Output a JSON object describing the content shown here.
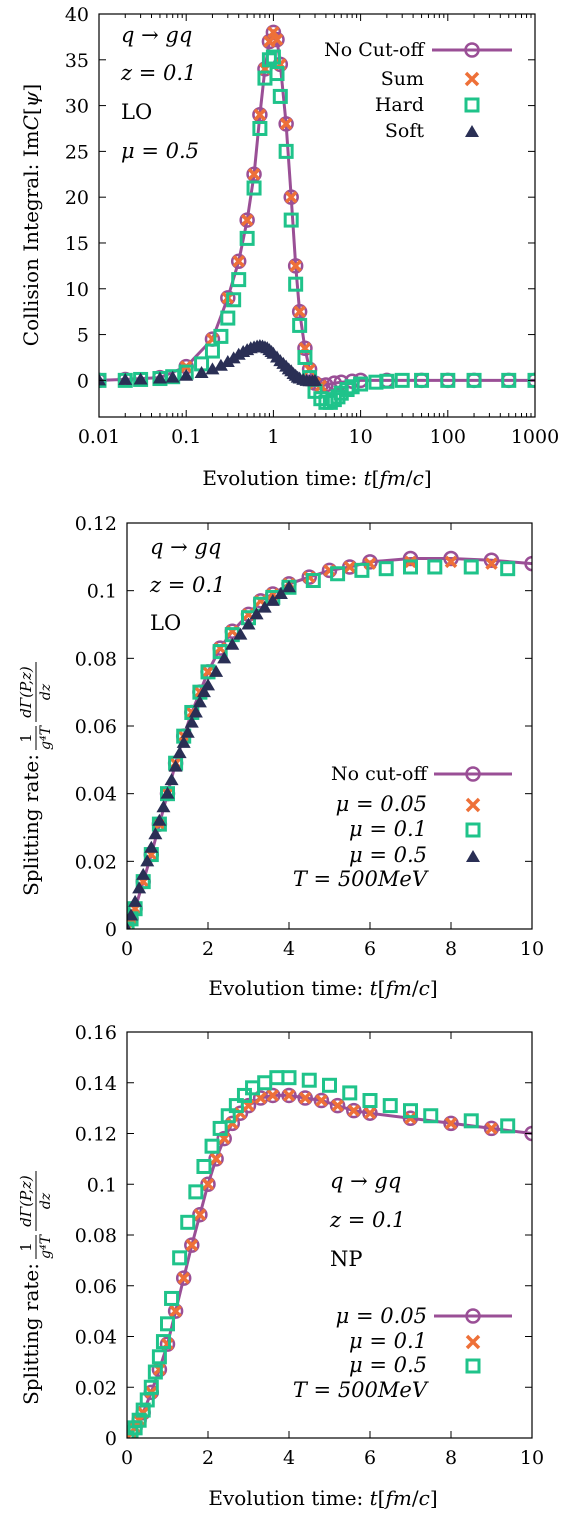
{
  "colors": {
    "no_cutoff": "#9a4f96",
    "sum": "#ee7038",
    "hard": "#1fc38a",
    "soft": "#2a2f55",
    "axis": "#000000"
  },
  "chart_data": [
    {
      "type": "line",
      "xscale": "log",
      "xlabel": "Evolution time: t[fm/c]",
      "ylabel": "Collision Integral: ImC[ψ]",
      "xlim": [
        0.01,
        1000
      ],
      "ylim": [
        -4,
        40
      ],
      "xticks": [
        0.01,
        0.1,
        1,
        10,
        100,
        1000
      ],
      "xtick_labels": [
        "0.01",
        "0.1",
        "1",
        "10",
        "100",
        "1000"
      ],
      "yticks": [
        0,
        5,
        10,
        15,
        20,
        25,
        30,
        35,
        40
      ],
      "ytick_labels": [
        "0",
        "5",
        "10",
        "15",
        "20",
        "25",
        "30",
        "35",
        "40"
      ],
      "annotations": [
        "q → gq",
        "z = 0.1",
        "LO",
        "μ = 0.5"
      ],
      "legend": [
        "No Cut-off",
        "Sum",
        "Hard",
        "Soft"
      ],
      "legend_position": "top-right",
      "series": [
        {
          "name": "No Cut-off",
          "marker": "circle",
          "x": [
            0.01,
            0.02,
            0.05,
            0.1,
            0.2,
            0.3,
            0.4,
            0.5,
            0.6,
            0.7,
            0.8,
            0.9,
            1.0,
            1.1,
            1.2,
            1.4,
            1.6,
            1.8,
            2.0,
            2.3,
            2.6,
            3.0,
            3.5,
            4.0,
            5.0,
            6.0,
            8.0,
            10,
            20,
            50,
            100,
            200,
            500,
            1000
          ],
          "y": [
            0.0,
            0.1,
            0.3,
            1.5,
            4.5,
            9.0,
            13.0,
            17.5,
            22.5,
            29.0,
            34.0,
            37.0,
            38.0,
            37.2,
            34.5,
            28.0,
            20.0,
            12.5,
            7.5,
            3.5,
            1.2,
            -0.3,
            -0.6,
            -0.5,
            -0.3,
            -0.2,
            -0.1,
            0.0,
            0.0,
            0.0,
            0.0,
            0.0,
            0.0,
            0.0
          ]
        },
        {
          "name": "Sum",
          "marker": "x",
          "x": [
            0.1,
            0.2,
            0.3,
            0.4,
            0.5,
            0.6,
            0.7,
            0.8,
            0.9,
            1.0,
            1.1,
            1.2,
            1.4,
            1.6,
            1.8,
            2.0,
            2.3,
            2.6,
            3.0,
            3.5
          ],
          "y": [
            1.5,
            4.5,
            9.0,
            13.0,
            17.5,
            22.5,
            29.0,
            34.0,
            37.0,
            38.0,
            37.2,
            34.5,
            28.0,
            20.0,
            12.5,
            7.5,
            3.5,
            1.2,
            -0.3,
            -0.6
          ]
        },
        {
          "name": "Hard",
          "marker": "square",
          "x": [
            0.01,
            0.02,
            0.03,
            0.05,
            0.07,
            0.1,
            0.15,
            0.2,
            0.25,
            0.3,
            0.35,
            0.4,
            0.5,
            0.6,
            0.7,
            0.8,
            0.9,
            1.0,
            1.1,
            1.2,
            1.4,
            1.6,
            1.8,
            2.0,
            2.3,
            2.6,
            3.0,
            3.5,
            4.0,
            4.5,
            5.0,
            5.5,
            6.0,
            7.0,
            8.0,
            10,
            15,
            20,
            30,
            50,
            100,
            200,
            500,
            1000
          ],
          "y": [
            0.0,
            0.0,
            0.1,
            0.2,
            0.4,
            0.9,
            1.8,
            3.2,
            4.8,
            6.8,
            8.8,
            11.0,
            15.5,
            21.0,
            27.5,
            33.0,
            35.0,
            35.3,
            33.5,
            31.0,
            25.0,
            17.5,
            10.5,
            6.0,
            2.5,
            0.3,
            -1.2,
            -2.0,
            -2.4,
            -2.4,
            -2.1,
            -1.8,
            -1.4,
            -1.0,
            -0.7,
            -0.4,
            -0.2,
            -0.1,
            0.0,
            0.0,
            0.0,
            0.0,
            0.0,
            0.0
          ]
        },
        {
          "name": "Soft",
          "marker": "triangle",
          "x": [
            0.01,
            0.02,
            0.03,
            0.05,
            0.07,
            0.1,
            0.15,
            0.2,
            0.25,
            0.3,
            0.35,
            0.4,
            0.45,
            0.5,
            0.55,
            0.6,
            0.65,
            0.7,
            0.75,
            0.8,
            0.85,
            0.9,
            0.95,
            1.0,
            1.1,
            1.2,
            1.3,
            1.4,
            1.5,
            1.6,
            1.7,
            1.8,
            1.9,
            2.0,
            2.2,
            2.4,
            2.6,
            2.8,
            3.0
          ],
          "y": [
            0.0,
            0.05,
            0.1,
            0.2,
            0.3,
            0.5,
            0.8,
            1.2,
            1.6,
            2.0,
            2.4,
            2.8,
            3.1,
            3.3,
            3.5,
            3.6,
            3.7,
            3.75,
            3.7,
            3.6,
            3.5,
            3.3,
            3.1,
            2.9,
            2.5,
            2.1,
            1.8,
            1.5,
            1.2,
            1.0,
            0.7,
            0.5,
            0.3,
            0.2,
            0.05,
            -0.05,
            -0.1,
            -0.1,
            -0.05
          ]
        }
      ]
    },
    {
      "type": "line",
      "xscale": "linear",
      "xlabel": "Evolution time: t[fm/c]",
      "ylabel": "Splitting rate: (1/(g⁴T)) dΓ(P,z)/dz",
      "xlim": [
        0,
        10
      ],
      "ylim": [
        0,
        0.12
      ],
      "xticks": [
        0,
        2,
        4,
        6,
        8,
        10
      ],
      "xtick_labels": [
        "0",
        "2",
        "4",
        "6",
        "8",
        "10"
      ],
      "yticks": [
        0,
        0.02,
        0.04,
        0.06,
        0.08,
        0.1,
        0.12
      ],
      "ytick_labels": [
        "0",
        "0.02",
        "0.04",
        "0.06",
        "0.08",
        "0.1",
        "0.12"
      ],
      "annotations": [
        "q → gq",
        "z = 0.1",
        "LO"
      ],
      "legend": [
        "No cut-off",
        "μ = 0.05",
        "μ = 0.1",
        "μ = 0.5",
        "T = 500MeV"
      ],
      "legend_position": "bottom-right",
      "series": [
        {
          "name": "No cut-off",
          "marker": "circle",
          "x": [
            0,
            0.1,
            0.2,
            0.4,
            0.6,
            0.8,
            1.0,
            1.2,
            1.4,
            1.6,
            1.8,
            2.0,
            2.3,
            2.6,
            3.0,
            3.3,
            3.6,
            4.0,
            4.5,
            5.0,
            5.5,
            6.0,
            7.0,
            8.0,
            9.0,
            10.0
          ],
          "y": [
            0,
            0.003,
            0.006,
            0.014,
            0.022,
            0.031,
            0.04,
            0.049,
            0.057,
            0.064,
            0.07,
            0.076,
            0.083,
            0.088,
            0.093,
            0.097,
            0.099,
            0.102,
            0.104,
            0.106,
            0.107,
            0.1085,
            0.1095,
            0.1095,
            0.109,
            0.108
          ]
        },
        {
          "name": "μ = 0.05",
          "marker": "x",
          "x": [
            0,
            0.1,
            0.2,
            0.4,
            0.6,
            0.8,
            1.0,
            1.2,
            1.4,
            1.6,
            1.8,
            2.0,
            2.3,
            2.6,
            3.0,
            3.3,
            3.6,
            4.0,
            4.5,
            5.0,
            5.5,
            6.0,
            7.0,
            8.0,
            9.0
          ],
          "y": [
            0,
            0.003,
            0.006,
            0.014,
            0.022,
            0.031,
            0.04,
            0.049,
            0.057,
            0.064,
            0.07,
            0.076,
            0.083,
            0.088,
            0.093,
            0.097,
            0.099,
            0.102,
            0.104,
            0.106,
            0.107,
            0.108,
            0.1085,
            0.1085,
            0.108
          ]
        },
        {
          "name": "μ = 0.1",
          "marker": "square",
          "x": [
            0,
            0.1,
            0.2,
            0.4,
            0.6,
            0.8,
            1.0,
            1.2,
            1.4,
            1.6,
            1.8,
            2.0,
            2.3,
            2.6,
            3.0,
            3.3,
            3.6,
            4.0,
            4.6,
            5.2,
            5.8,
            6.4,
            7.0,
            7.6,
            8.5,
            9.4
          ],
          "y": [
            0,
            0.003,
            0.006,
            0.014,
            0.022,
            0.031,
            0.04,
            0.049,
            0.057,
            0.064,
            0.07,
            0.076,
            0.082,
            0.087,
            0.092,
            0.096,
            0.098,
            0.101,
            0.103,
            0.105,
            0.106,
            0.1065,
            0.107,
            0.107,
            0.107,
            0.1065
          ]
        },
        {
          "name": "μ = 0.5",
          "marker": "triangle",
          "x": [
            0,
            0.1,
            0.2,
            0.3,
            0.4,
            0.5,
            0.6,
            0.7,
            0.8,
            0.9,
            1.0,
            1.1,
            1.2,
            1.3,
            1.4,
            1.5,
            1.6,
            1.7,
            1.8,
            1.9,
            2.0,
            2.2,
            2.4,
            2.6,
            2.8,
            3.0,
            3.2,
            3.4,
            3.6,
            3.8,
            4.0
          ],
          "y": [
            0,
            0.004,
            0.008,
            0.012,
            0.016,
            0.02,
            0.024,
            0.028,
            0.032,
            0.036,
            0.04,
            0.044,
            0.048,
            0.052,
            0.055,
            0.058,
            0.061,
            0.064,
            0.067,
            0.07,
            0.072,
            0.076,
            0.08,
            0.084,
            0.087,
            0.09,
            0.093,
            0.095,
            0.097,
            0.099,
            0.101
          ]
        }
      ]
    },
    {
      "type": "line",
      "xscale": "linear",
      "xlabel": "Evolution time: t[fm/c]",
      "ylabel": "Splitting rate: (1/(g⁴T)) dΓ(P,z)/dz",
      "xlim": [
        0,
        10
      ],
      "ylim": [
        0,
        0.16
      ],
      "xticks": [
        0,
        2,
        4,
        6,
        8,
        10
      ],
      "xtick_labels": [
        "0",
        "2",
        "4",
        "6",
        "8",
        "10"
      ],
      "yticks": [
        0,
        0.02,
        0.04,
        0.06,
        0.08,
        0.1,
        0.12,
        0.14,
        0.16
      ],
      "ytick_labels": [
        "0",
        "0.02",
        "0.04",
        "0.06",
        "0.08",
        "0.1",
        "0.12",
        "0.14",
        "0.16"
      ],
      "annotations": [
        "q → gq",
        "z = 0.1",
        "NP"
      ],
      "legend": [
        "μ = 0.05",
        "μ = 0.1",
        "μ = 0.5",
        "T = 500MeV"
      ],
      "legend_position": "bottom-right",
      "series": [
        {
          "name": "μ = 0.05",
          "marker": "circle",
          "x": [
            0,
            0.1,
            0.2,
            0.3,
            0.4,
            0.6,
            0.8,
            1.0,
            1.2,
            1.4,
            1.6,
            1.8,
            2.0,
            2.2,
            2.4,
            2.6,
            2.8,
            3.0,
            3.3,
            3.6,
            4.0,
            4.4,
            4.8,
            5.2,
            5.6,
            6.0,
            7.0,
            8.0,
            9.0,
            10.0
          ],
          "y": [
            0,
            0.002,
            0.004,
            0.007,
            0.01,
            0.018,
            0.027,
            0.037,
            0.05,
            0.063,
            0.076,
            0.088,
            0.1,
            0.11,
            0.118,
            0.124,
            0.128,
            0.131,
            0.134,
            0.135,
            0.135,
            0.134,
            0.133,
            0.131,
            0.129,
            0.128,
            0.126,
            0.124,
            0.122,
            0.12
          ]
        },
        {
          "name": "μ = 0.1",
          "marker": "x",
          "x": [
            0,
            0.1,
            0.2,
            0.3,
            0.4,
            0.6,
            0.8,
            1.0,
            1.2,
            1.4,
            1.6,
            1.8,
            2.0,
            2.2,
            2.4,
            2.6,
            2.8,
            3.0,
            3.3,
            3.6,
            4.0,
            4.4,
            4.8,
            5.2,
            5.6,
            6.0,
            7.0,
            8.0,
            9.0
          ],
          "y": [
            0,
            0.002,
            0.004,
            0.007,
            0.01,
            0.018,
            0.027,
            0.037,
            0.05,
            0.063,
            0.076,
            0.088,
            0.1,
            0.11,
            0.118,
            0.124,
            0.128,
            0.131,
            0.134,
            0.135,
            0.135,
            0.134,
            0.133,
            0.131,
            0.129,
            0.128,
            0.126,
            0.124,
            0.122
          ]
        },
        {
          "name": "μ = 0.5",
          "marker": "square",
          "x": [
            0,
            0.1,
            0.2,
            0.3,
            0.4,
            0.5,
            0.6,
            0.7,
            0.8,
            0.9,
            1.0,
            1.1,
            1.3,
            1.5,
            1.7,
            1.9,
            2.1,
            2.3,
            2.5,
            2.7,
            2.9,
            3.1,
            3.4,
            3.7,
            4.0,
            4.5,
            5.0,
            5.5,
            6.0,
            6.5,
            7.0,
            7.5,
            8.5,
            9.4
          ],
          "y": [
            0,
            0.002,
            0.004,
            0.007,
            0.011,
            0.015,
            0.02,
            0.026,
            0.032,
            0.038,
            0.045,
            0.055,
            0.071,
            0.085,
            0.097,
            0.107,
            0.115,
            0.122,
            0.127,
            0.131,
            0.135,
            0.138,
            0.14,
            0.142,
            0.142,
            0.141,
            0.139,
            0.136,
            0.133,
            0.131,
            0.129,
            0.127,
            0.125,
            0.123
          ]
        }
      ]
    }
  ]
}
